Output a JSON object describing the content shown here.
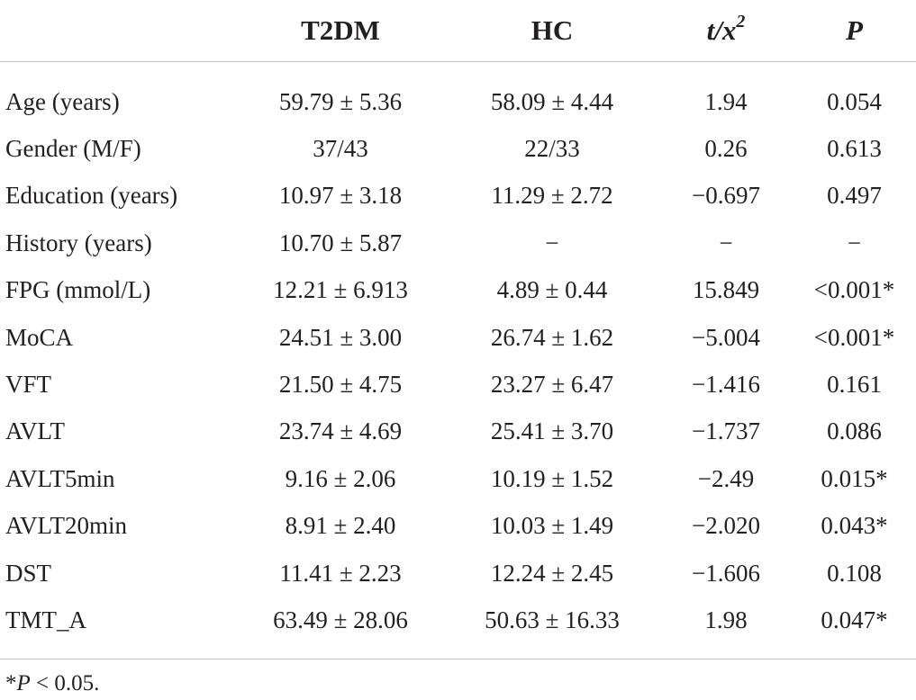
{
  "table": {
    "headers": [
      "",
      "T2DM",
      "HC",
      "t/x",
      "P"
    ],
    "header_sup": "2",
    "rows": [
      {
        "label": "Age (years)",
        "t2dm": "59.79 ± 5.36",
        "hc": "58.09 ± 4.44",
        "t": "1.94",
        "p": "0.054"
      },
      {
        "label": "Gender (M/F)",
        "t2dm": "37/43",
        "hc": "22/33",
        "t": "0.26",
        "p": "0.613"
      },
      {
        "label": "Education (years)",
        "t2dm": "10.97 ± 3.18",
        "hc": "11.29 ± 2.72",
        "t": "−0.697",
        "p": "0.497"
      },
      {
        "label": "History (years)",
        "t2dm": "10.70 ± 5.87",
        "hc": "−",
        "t": "−",
        "p": "−"
      },
      {
        "label": "FPG (mmol/L)",
        "t2dm": "12.21 ± 6.913",
        "hc": "4.89 ± 0.44",
        "t": "15.849",
        "p": "<0.001*"
      },
      {
        "label": "MoCA",
        "t2dm": "24.51 ± 3.00",
        "hc": "26.74 ± 1.62",
        "t": "−5.004",
        "p": "<0.001*"
      },
      {
        "label": "VFT",
        "t2dm": "21.50 ± 4.75",
        "hc": "23.27 ± 6.47",
        "t": "−1.416",
        "p": "0.161"
      },
      {
        "label": "AVLT",
        "t2dm": "23.74 ± 4.69",
        "hc": "25.41 ± 3.70",
        "t": "−1.737",
        "p": "0.086"
      },
      {
        "label": "AVLT5min",
        "t2dm": "9.16 ± 2.06",
        "hc": "10.19 ± 1.52",
        "t": "−2.49",
        "p": "0.015*"
      },
      {
        "label": "AVLT20min",
        "t2dm": "8.91 ± 2.40",
        "hc": "10.03 ± 1.49",
        "t": "−2.020",
        "p": "0.043*"
      },
      {
        "label": "DST",
        "t2dm": "11.41 ± 2.23",
        "hc": "12.24 ± 2.45",
        "t": "−1.606",
        "p": "0.108"
      },
      {
        "label": "TMT_A",
        "t2dm": "63.49 ± 28.06",
        "hc": "50.63 ± 16.33",
        "t": "1.98",
        "p": "0.047*"
      }
    ]
  },
  "footnote": {
    "marker": "*",
    "symbol": "P",
    "text": " < 0.05."
  },
  "colors": {
    "text": "#231f20",
    "rule": "#bfbfbf"
  }
}
